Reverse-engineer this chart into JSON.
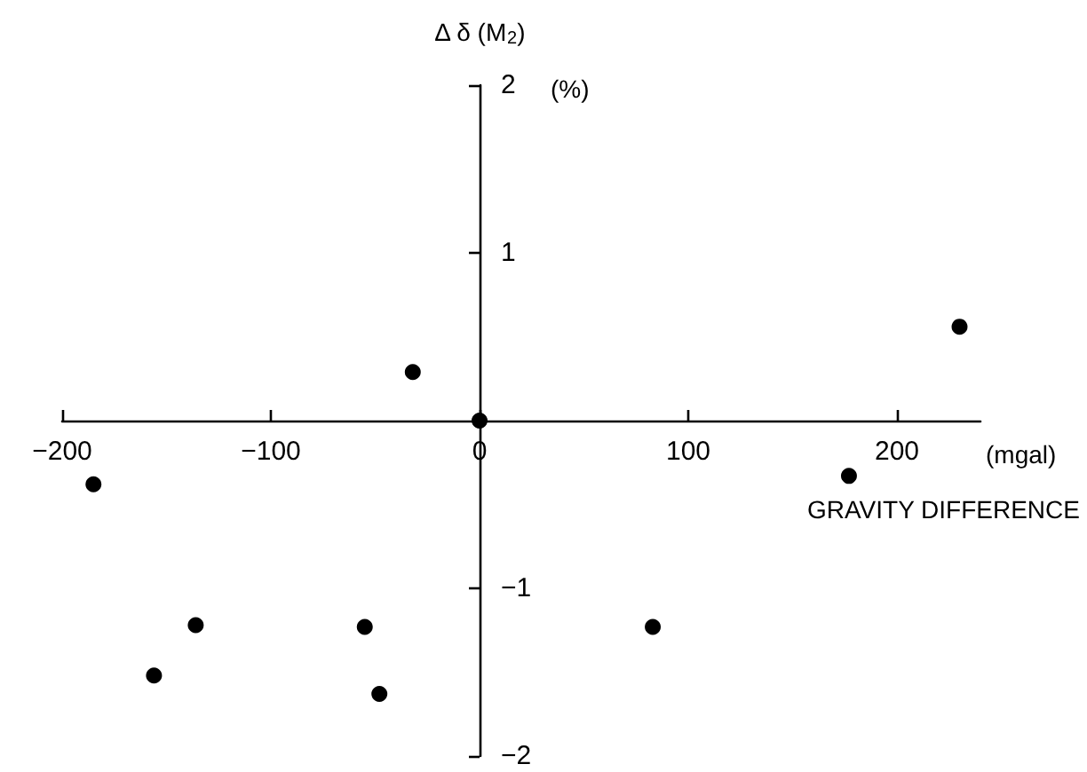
{
  "chart_data": {
    "type": "scatter",
    "xlabel": "GRAVITY DIFFERENCE",
    "ylabel": "Δ δ (M$_{2}$)",
    "annotations": [
      "(mgal)",
      "(%)"
    ],
    "x": [
      -185,
      -156,
      -136,
      -55,
      -48,
      -32,
      0,
      83,
      177,
      230
    ],
    "series": [
      {
        "color": "#000000",
        "values": [
          -0.38,
          -1.52,
          -1.22,
          -1.23,
          -1.63,
          0.29,
          0,
          -1.23,
          -0.33,
          0.56
        ]
      }
    ],
    "xlim": [
      -200,
      240
    ],
    "ylim": [
      -2,
      2
    ],
    "xticks": [
      -200,
      -100,
      0,
      100,
      200
    ],
    "yticks": [
      -2,
      -1,
      1,
      2
    ],
    "grid": false,
    "marker": "circle"
  }
}
